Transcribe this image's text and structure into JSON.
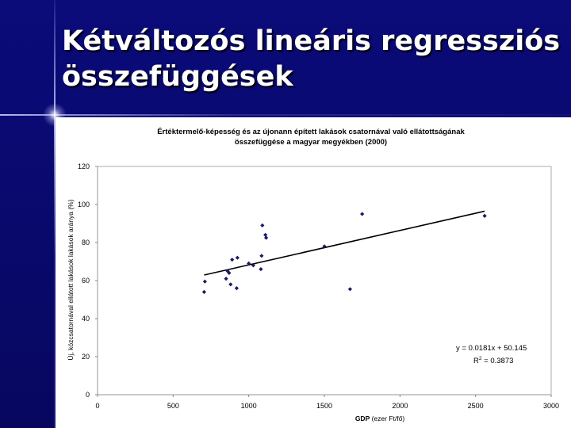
{
  "slide": {
    "title_line1": "Kétváltozós lineáris regressziós",
    "title_line2": "összefüggések"
  },
  "colors": {
    "background": "#0a0a6e",
    "marker": "#1a1a66",
    "panel": "#ffffff"
  },
  "chart_data": {
    "type": "scatter",
    "title_line1": "Értéktermelő-képesség és az újonann épített lakások csatornával való ellátottságának",
    "title_line2": "összefüggése a magyar megyékben (2000)",
    "xlabel_bold": "GDP",
    "xlabel_rest": " (ezer Ft/fő)",
    "ylabel": "Új, közcsatornával ellátott lakások lakások aránya (%)",
    "xlim": [
      0,
      3000
    ],
    "ylim": [
      0,
      120
    ],
    "xticks": [
      0,
      500,
      1000,
      1500,
      2000,
      2500,
      3000
    ],
    "yticks": [
      0,
      20,
      40,
      60,
      80,
      100,
      120
    ],
    "grid": false,
    "points": [
      {
        "x": 705,
        "y": 54
      },
      {
        "x": 710,
        "y": 59.5
      },
      {
        "x": 850,
        "y": 61
      },
      {
        "x": 860,
        "y": 65
      },
      {
        "x": 870,
        "y": 64
      },
      {
        "x": 880,
        "y": 58
      },
      {
        "x": 890,
        "y": 71
      },
      {
        "x": 920,
        "y": 56
      },
      {
        "x": 925,
        "y": 72
      },
      {
        "x": 1000,
        "y": 69
      },
      {
        "x": 1030,
        "y": 68
      },
      {
        "x": 1080,
        "y": 66
      },
      {
        "x": 1085,
        "y": 73
      },
      {
        "x": 1090,
        "y": 89
      },
      {
        "x": 1110,
        "y": 84
      },
      {
        "x": 1115,
        "y": 82.5
      },
      {
        "x": 1500,
        "y": 78
      },
      {
        "x": 1670,
        "y": 55.5
      },
      {
        "x": 1750,
        "y": 95
      },
      {
        "x": 2560,
        "y": 94
      }
    ],
    "trendline": {
      "slope": 0.0181,
      "intercept": 50.145,
      "x_from": 705,
      "x_to": 2560
    },
    "equation": "y = 0.0181x + 50.145",
    "r2_prefix": "R",
    "r2_sup": "2",
    "r2_value": " = 0.3873"
  }
}
